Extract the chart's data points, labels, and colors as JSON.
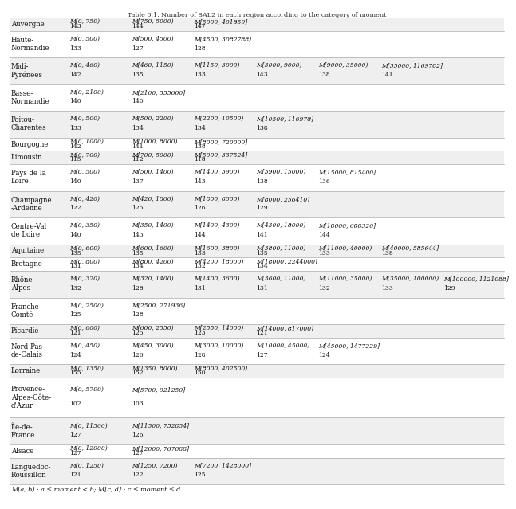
{
  "title": "Table 3.1. Number of SAL2 in each region according to the category of moment",
  "rows": [
    {
      "region": "Auvergne",
      "lines": 1,
      "cells": [
        [
          "M[0, 750)",
          "143"
        ],
        [
          "M[750, 5000)",
          "144"
        ],
        [
          "M[5000, 401850]",
          "147"
        ],
        [
          "",
          ""
        ],
        [
          "",
          ""
        ],
        [
          "",
          ""
        ],
        [
          "",
          ""
        ]
      ]
    },
    {
      "region": "Haute-\nNormandie",
      "lines": 2,
      "cells": [
        [
          "M[0, 500)",
          "133"
        ],
        [
          "M[500, 4500)",
          "127"
        ],
        [
          "M[4500, 3082788]",
          "128"
        ],
        [
          "",
          ""
        ],
        [
          "",
          ""
        ],
        [
          "",
          ""
        ],
        [
          "",
          ""
        ]
      ]
    },
    {
      "region": "Midi-\nPyrénées",
      "lines": 2,
      "cells": [
        [
          "M[0, 460)",
          "142"
        ],
        [
          "M[460, 1150)",
          "135"
        ],
        [
          "M[1150, 3000)",
          "133"
        ],
        [
          "M[3000, 9000)",
          "143"
        ],
        [
          "M[9000, 35000)",
          "138"
        ],
        [
          "M[35000, 1169782]",
          "141"
        ],
        [
          "",
          ""
        ]
      ]
    },
    {
      "region": "Basse-\nNormandie",
      "lines": 2,
      "cells": [
        [
          "M[0, 2100)",
          "140"
        ],
        [
          "M[2100, 555600]",
          "140"
        ],
        [
          "",
          ""
        ],
        [
          "",
          ""
        ],
        [
          "",
          ""
        ],
        [
          "",
          ""
        ],
        [
          "",
          ""
        ]
      ]
    },
    {
      "region": "Poitou-\nCharentes",
      "lines": 2,
      "cells": [
        [
          "M[0, 500)",
          "133"
        ],
        [
          "M[500, 2200)",
          "134"
        ],
        [
          "M[2200, 10500)",
          "134"
        ],
        [
          "M[10500, 116978]",
          "138"
        ],
        [
          "",
          ""
        ],
        [
          "",
          ""
        ],
        [
          "",
          ""
        ]
      ]
    },
    {
      "region": "Bourgogne",
      "lines": 1,
      "cells": [
        [
          "M[0, 1000)",
          "142"
        ],
        [
          "M[1000, 8000)",
          "141"
        ],
        [
          "M[8000, 720000]",
          "138"
        ],
        [
          "",
          ""
        ],
        [
          "",
          ""
        ],
        [
          "",
          ""
        ],
        [
          "",
          ""
        ]
      ]
    },
    {
      "region": "Limousin",
      "lines": 1,
      "cells": [
        [
          "M[0, 700)",
          "115"
        ],
        [
          "M[700, 5000)",
          "112"
        ],
        [
          "M[5000, 337524]",
          "118"
        ],
        [
          "",
          ""
        ],
        [
          "",
          ""
        ],
        [
          "",
          ""
        ],
        [
          "",
          ""
        ]
      ]
    },
    {
      "region": "Pays de la\nLoire",
      "lines": 2,
      "cells": [
        [
          "M[0, 500)",
          "140"
        ],
        [
          "M[500, 1400)",
          "137"
        ],
        [
          "M[1400, 3900)",
          "143"
        ],
        [
          "M[3900, 15000)",
          "138"
        ],
        [
          "M[15000, 815400]",
          "136"
        ],
        [
          "",
          ""
        ],
        [
          "",
          ""
        ]
      ]
    },
    {
      "region": "Champagne\n-Ardenne",
      "lines": 2,
      "cells": [
        [
          "M[0, 420)",
          "122"
        ],
        [
          "M[420, 1800)",
          "125"
        ],
        [
          "M[1800, 8000)",
          "126"
        ],
        [
          "M[8000, 256410]",
          "129"
        ],
        [
          "",
          ""
        ],
        [
          "",
          ""
        ],
        [
          "",
          ""
        ]
      ]
    },
    {
      "region": "Centre-Val\nde Loire",
      "lines": 2,
      "cells": [
        [
          "M[0, 350)",
          "140"
        ],
        [
          "M[350, 1400)",
          "143"
        ],
        [
          "M[1400, 4300)",
          "144"
        ],
        [
          "M[4300, 18000)",
          "141"
        ],
        [
          "M[18000, 688320]",
          "144"
        ],
        [
          "",
          ""
        ],
        [
          "",
          ""
        ]
      ]
    },
    {
      "region": "Aquitaine",
      "lines": 1,
      "cells": [
        [
          "M[0, 600)",
          "135"
        ],
        [
          "M[600, 1600)",
          "135"
        ],
        [
          "M[1600, 3800)",
          "133"
        ],
        [
          "M[3800, 11000)",
          "135"
        ],
        [
          "M[11000, 40000)",
          "133"
        ],
        [
          "M[40000, 585644]",
          "138"
        ],
        [
          "",
          ""
        ]
      ]
    },
    {
      "region": "Bretagne",
      "lines": 1,
      "cells": [
        [
          "M[0, 800)",
          "131"
        ],
        [
          "M[800, 4200)",
          "134"
        ],
        [
          "M[4200, 18000)",
          "132"
        ],
        [
          "M[18000, 2244000]",
          "134"
        ],
        [
          "",
          ""
        ],
        [
          "",
          ""
        ],
        [
          "",
          ""
        ]
      ]
    },
    {
      "region": "Rhône-\nAlpes",
      "lines": 2,
      "cells": [
        [
          "M[0, 320)",
          "132"
        ],
        [
          "M[320, 1400)",
          "128"
        ],
        [
          "M[1400, 3600)",
          "131"
        ],
        [
          "M[3600, 11000)",
          "131"
        ],
        [
          "M[11000, 35000)",
          "132"
        ],
        [
          "M[35000, 100000)",
          "133"
        ],
        [
          "M[100000, 1121088]",
          "129"
        ]
      ]
    },
    {
      "region": "Franche-\nComté",
      "lines": 2,
      "cells": [
        [
          "M[0, 2500)",
          "125"
        ],
        [
          "M[2500, 271936]",
          "128"
        ],
        [
          "",
          ""
        ],
        [
          "",
          ""
        ],
        [
          "",
          ""
        ],
        [
          "",
          ""
        ],
        [
          "",
          ""
        ]
      ]
    },
    {
      "region": "Picardie",
      "lines": 1,
      "cells": [
        [
          "M[0, 600)",
          "121"
        ],
        [
          "M[600, 2550)",
          "125"
        ],
        [
          "M[2550, 14000)",
          "123"
        ],
        [
          "M[14000, 817000]",
          "121"
        ],
        [
          "",
          ""
        ],
        [
          "",
          ""
        ],
        [
          "",
          ""
        ]
      ]
    },
    {
      "region": "Nord-Pas-\nde-Calais",
      "lines": 2,
      "cells": [
        [
          "M[0, 450)",
          "124"
        ],
        [
          "M[450, 3000)",
          "126"
        ],
        [
          "M[3000, 10000)",
          "128"
        ],
        [
          "M[10000, 45000)",
          "127"
        ],
        [
          "M[45000, 1477229]",
          "124"
        ],
        [
          "",
          ""
        ],
        [
          "",
          ""
        ]
      ]
    },
    {
      "region": "Lorraine",
      "lines": 1,
      "cells": [
        [
          "M[0, 1350)",
          "155"
        ],
        [
          "M[1350, 8000)",
          "152"
        ],
        [
          "M[8000, 402500]",
          "150"
        ],
        [
          "",
          ""
        ],
        [
          "",
          ""
        ],
        [
          "",
          ""
        ],
        [
          "",
          ""
        ]
      ]
    },
    {
      "region": "Provence-\nAlpes-Côte-\nd'Azur",
      "lines": 3,
      "cells": [
        [
          "M[0, 5700)",
          "102"
        ],
        [
          "M[5700, 921250]",
          "103"
        ],
        [
          "",
          ""
        ],
        [
          "",
          ""
        ],
        [
          "",
          ""
        ],
        [
          "",
          ""
        ],
        [
          "",
          ""
        ]
      ]
    },
    {
      "region": "Île-de-\nFrance",
      "lines": 2,
      "cells": [
        [
          "M[0, 11500)",
          "127"
        ],
        [
          "M[11500, 752854]",
          "126"
        ],
        [
          "",
          ""
        ],
        [
          "",
          ""
        ],
        [
          "",
          ""
        ],
        [
          "",
          ""
        ],
        [
          "",
          ""
        ]
      ]
    },
    {
      "region": "Alsace",
      "lines": 1,
      "cells": [
        [
          "M[0, 12000)",
          "127"
        ],
        [
          "M[12000, 767088]",
          "127"
        ],
        [
          "",
          ""
        ],
        [
          "",
          ""
        ],
        [
          "",
          ""
        ],
        [
          "",
          ""
        ],
        [
          "",
          ""
        ]
      ]
    },
    {
      "region": "Languedoc-\nRoussillon",
      "lines": 2,
      "cells": [
        [
          "M[0, 1250)",
          "121"
        ],
        [
          "M[1250, 7200)",
          "122"
        ],
        [
          "M[7200, 1428000]",
          "125"
        ],
        [
          "",
          ""
        ],
        [
          "",
          ""
        ],
        [
          "",
          ""
        ],
        [
          "",
          ""
        ]
      ]
    }
  ],
  "footnote": "M[a, b) : a ≤ moment < b; M[c, d] : c ≤ moment ≤ d.",
  "bg_light": "#efefef",
  "bg_white": "#ffffff",
  "text_color": "#111111",
  "border_color": "#aaaaaa",
  "title_color": "#333333"
}
